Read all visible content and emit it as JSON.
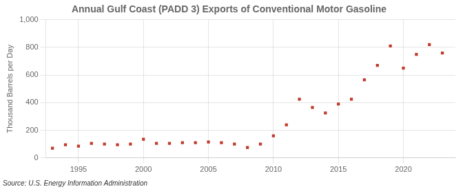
{
  "chart_data": {
    "type": "scatter",
    "title": "Annual Gulf Coast (PADD 3) Exports of Conventional Motor Gasoline",
    "ylabel": "Thousand Barrels per Day",
    "source": "Source: U.S. Energy Information Administration",
    "x": [
      1993,
      1994,
      1995,
      1996,
      1997,
      1998,
      1999,
      2000,
      2001,
      2002,
      2003,
      2004,
      2005,
      2006,
      2007,
      2008,
      2009,
      2010,
      2011,
      2012,
      2013,
      2014,
      2015,
      2016,
      2017,
      2018,
      2019,
      2020,
      2021,
      2022,
      2023
    ],
    "values": [
      70,
      95,
      85,
      105,
      100,
      95,
      100,
      135,
      105,
      105,
      110,
      110,
      115,
      110,
      100,
      75,
      100,
      160,
      240,
      425,
      365,
      325,
      390,
      425,
      565,
      670,
      810,
      650,
      750,
      820,
      760
    ],
    "color": "#c0392b",
    "marker": "square",
    "xlim": [
      1992.5,
      2024
    ],
    "xticks": [
      1995,
      2000,
      2005,
      2010,
      2015,
      2020
    ],
    "ylim": [
      0,
      1000
    ],
    "yticks": [
      0,
      200,
      400,
      600,
      800,
      {
        "value": 1000,
        "label": "1,000"
      }
    ],
    "grid": true
  }
}
